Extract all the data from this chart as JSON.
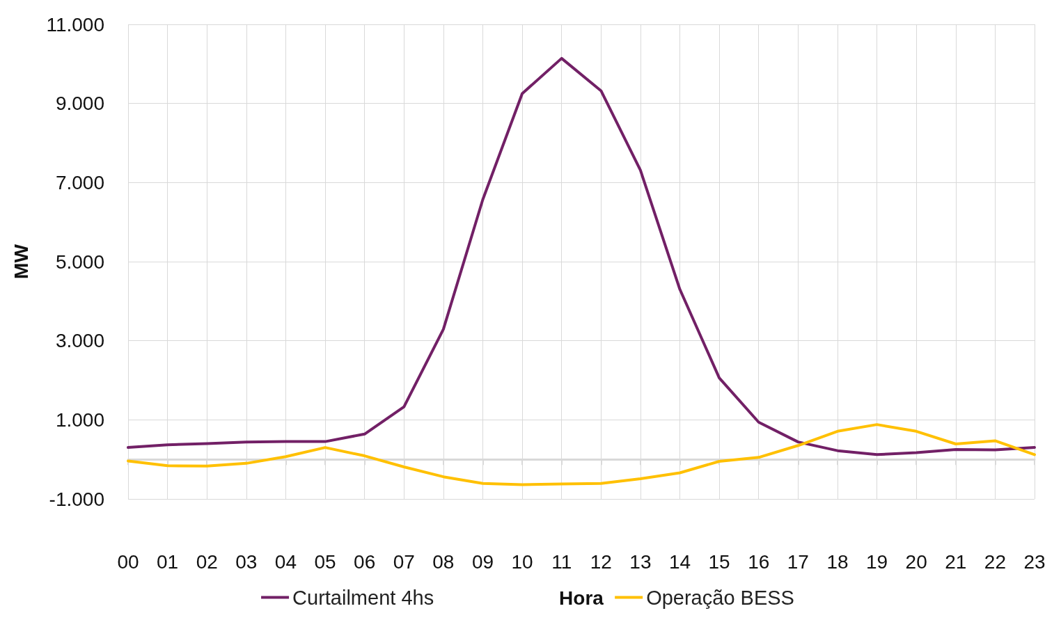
{
  "chart_data": {
    "type": "line",
    "xlabel": "Hora",
    "ylabel": "MW",
    "categories": [
      "00",
      "01",
      "02",
      "03",
      "04",
      "05",
      "06",
      "07",
      "08",
      "09",
      "10",
      "11",
      "12",
      "13",
      "14",
      "15",
      "16",
      "17",
      "18",
      "19",
      "20",
      "21",
      "22",
      "23"
    ],
    "series": [
      {
        "name": "Curtailment 4hs",
        "color": "#722066",
        "values": [
          300,
          370,
          400,
          440,
          450,
          450,
          640,
          1330,
          3290,
          6570,
          9250,
          10140,
          9320,
          7310,
          4300,
          2060,
          940,
          440,
          220,
          120,
          170,
          250,
          240,
          300
        ]
      },
      {
        "name": "Operação BESS",
        "color": "#ffc000",
        "values": [
          -40,
          -160,
          -170,
          -100,
          70,
          300,
          90,
          -190,
          -440,
          -610,
          -640,
          -620,
          -610,
          -490,
          -340,
          -50,
          50,
          350,
          710,
          880,
          710,
          390,
          470,
          120
        ]
      }
    ],
    "ylim": [
      -1000,
      11000
    ],
    "yticks": [
      {
        "value": -1000,
        "label": "-1.000"
      },
      {
        "value": 1000,
        "label": "1.000"
      },
      {
        "value": 3000,
        "label": "3.000"
      },
      {
        "value": 5000,
        "label": "5.000"
      },
      {
        "value": 7000,
        "label": "7.000"
      },
      {
        "value": 9000,
        "label": "9.000"
      },
      {
        "value": 11000,
        "label": "11.000"
      }
    ],
    "grid": true,
    "legend": "bottom",
    "marker": "none",
    "line_style": "solid"
  }
}
